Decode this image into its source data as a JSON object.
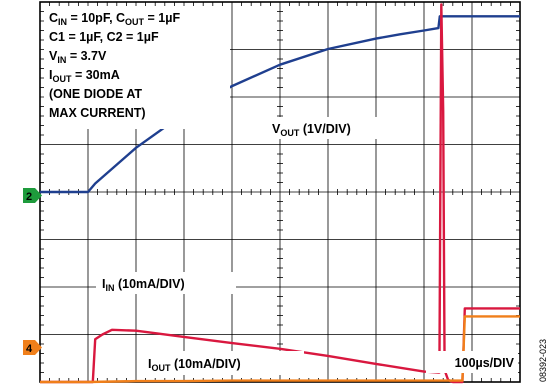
{
  "chart_data": {
    "type": "line",
    "conditions": [
      {
        "id": "cin_cout",
        "main": "C",
        "sub1": "IN",
        "mid": " = 10pF, C",
        "sub2": "OUT",
        "tail": " = 1µF"
      },
      {
        "id": "c1c2",
        "main": "C1 = 1µF, C2 = 1µF"
      },
      {
        "id": "vin",
        "main": "V",
        "sub1": "IN",
        "tail": " = 3.7V"
      },
      {
        "id": "iout",
        "main": "I",
        "sub1": "OUT",
        "tail": " = 30mA"
      },
      {
        "id": "note1",
        "main": "(ONE DIODE AT"
      },
      {
        "id": "note2",
        "main": "MAX CURRENT)"
      }
    ],
    "trace_labels": {
      "vout": {
        "main": "V",
        "sub": "OUT",
        "tail": " (1V/DIV)"
      },
      "iin": {
        "main": "I",
        "sub": "IN",
        "tail": " (10mA/DIV)"
      },
      "iout": {
        "main": "I",
        "sub": "OUT",
        "tail": " (10mA/DIV)"
      }
    },
    "timebase": "100µs/DIV",
    "figure_id": "08392-023",
    "channel_markers": [
      {
        "label": "2",
        "color": "#1e9b3c"
      },
      {
        "label": "4",
        "color": "#f07f1a"
      }
    ],
    "axes": {
      "x_divisions": 10,
      "y_divisions": 8,
      "x_unit": "µs",
      "x_per_div": 100,
      "xlim": [
        0,
        1000
      ],
      "ylim": [
        -4,
        4
      ]
    },
    "series": [
      {
        "id": "vout",
        "color": "#1f3f8f",
        "x": [
          0,
          100,
          115,
          200,
          300,
          400,
          500,
          600,
          700,
          750,
          800,
          830,
          833,
          850,
          900,
          950,
          1000
        ],
        "y": [
          0,
          0,
          0.18,
          0.93,
          1.65,
          2.23,
          2.68,
          3.01,
          3.23,
          3.32,
          3.4,
          3.45,
          3.7,
          3.7,
          3.7,
          3.7,
          3.7
        ]
      },
      {
        "id": "iin",
        "color": "#d9183f",
        "x": [
          0,
          110,
          115,
          130,
          150,
          200,
          300,
          400,
          500,
          600,
          700,
          800,
          830,
          832,
          836,
          840,
          843,
          850,
          855,
          860,
          880,
          885,
          900,
          950,
          1000
        ],
        "y": [
          -4,
          -4,
          -3.1,
          -3.0,
          -2.9,
          -2.92,
          -3.05,
          -3.18,
          -3.3,
          -3.45,
          -3.62,
          -3.78,
          -3.8,
          -3.8,
          3.95,
          1.7,
          -3.75,
          -3.95,
          -3.98,
          -4,
          -4,
          -2.45,
          -2.45,
          -2.45,
          -2.45
        ]
      },
      {
        "id": "iout",
        "color": "#f07f1a",
        "x": [
          0,
          100,
          200,
          300,
          400,
          500,
          600,
          700,
          800,
          880,
          885,
          900,
          950,
          1000
        ],
        "y": [
          -4,
          -4,
          -3.98,
          -3.98,
          -3.97,
          -3.97,
          -3.97,
          -3.97,
          -3.97,
          -3.97,
          -2.62,
          -2.62,
          -2.62,
          -2.62
        ]
      }
    ]
  }
}
